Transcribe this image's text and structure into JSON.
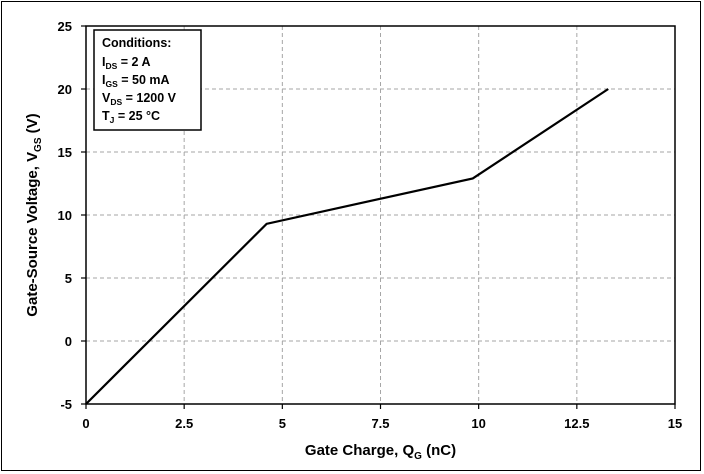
{
  "chart_data": {
    "type": "line",
    "xlabel": "Gate Charge, Q",
    "xlabel_sub": "G",
    "xlabel_suffix": " (nC)",
    "ylabel": "Gate-Source Voltage, V",
    "ylabel_sub": "GS",
    "ylabel_suffix": " (V)",
    "xlim": [
      0,
      15
    ],
    "ylim": [
      -5,
      25
    ],
    "xticks": [
      0,
      2.5,
      5,
      7.5,
      10,
      12.5,
      15
    ],
    "xtick_labels": [
      "0",
      "2.5",
      "5",
      "7.5",
      "10",
      "12.5",
      "15"
    ],
    "yticks": [
      -5,
      0,
      5,
      10,
      15,
      20,
      25
    ],
    "ytick_labels": [
      "-5",
      "0",
      "5",
      "10",
      "15",
      "20",
      "25"
    ],
    "grid": true,
    "series": [
      {
        "color": "#000000",
        "x": [
          0,
          4.6,
          9.85,
          13.3
        ],
        "y": [
          -5,
          9.3,
          12.9,
          20.0
        ]
      }
    ],
    "annotation": {
      "title": "Conditions:",
      "lines": [
        {
          "main": "I",
          "sub": "DS",
          "rest": " = 2 A"
        },
        {
          "main": "I",
          "sub": "GS",
          "rest": " = 50 mA"
        },
        {
          "main": "V",
          "sub": "DS",
          "rest": " = 1200 V"
        },
        {
          "main": "T",
          "sub": "J",
          "rest": " = 25 °C"
        }
      ]
    }
  }
}
